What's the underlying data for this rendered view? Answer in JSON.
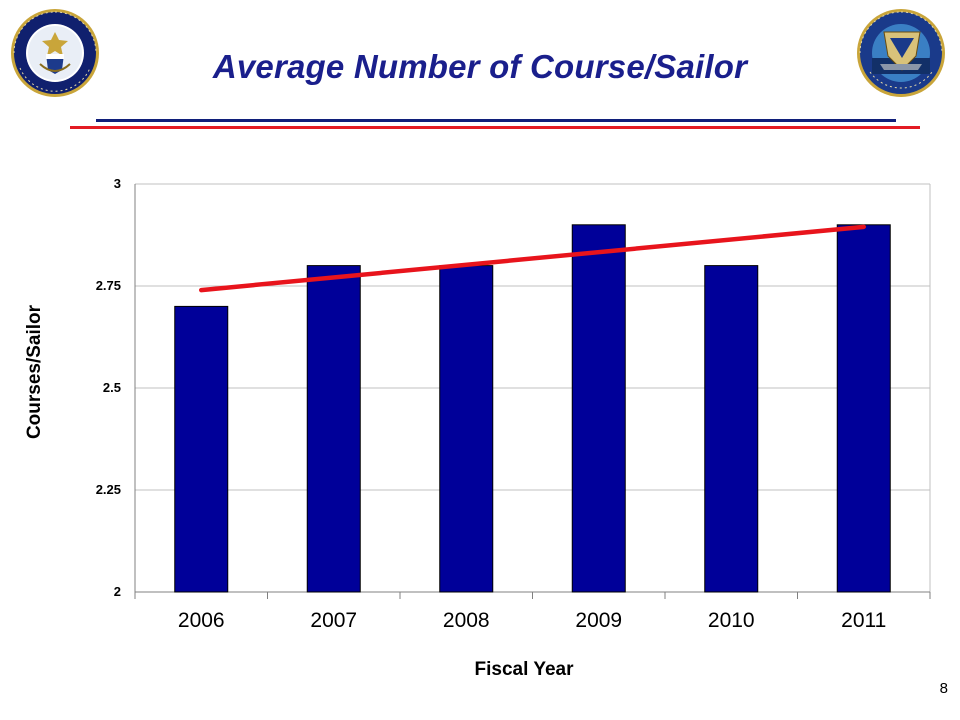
{
  "slide": {
    "title": "Average Number of Course/Sailor",
    "page_number": "8",
    "colors": {
      "title": "#1a1f8c",
      "rule_top": "#101f7a",
      "rule_bottom": "#e31b23"
    }
  },
  "logos": {
    "left": {
      "icon": "us-navy-chief-of-naval-operations-seal",
      "text": "UNITED STATES NAVY · CHIEF OF NAVAL OPERATIONS"
    },
    "right": {
      "icon": "naval-education-and-training-command-seal",
      "text": "NAVAL EDUCATION AND TRAINING COMMAND · EXCEL FOR READINESS"
    }
  },
  "chart_data": {
    "type": "bar",
    "title": "",
    "xlabel": "Fiscal Year",
    "ylabel": "Courses/Sailor",
    "categories": [
      "2006",
      "2007",
      "2008",
      "2009",
      "2010",
      "2011"
    ],
    "series": [
      {
        "values": [
          2.7,
          2.8,
          2.8,
          2.9,
          2.8,
          2.9
        ],
        "color": "#000099"
      }
    ],
    "trendline": {
      "type": "linear",
      "start": 2.74,
      "end": 2.895,
      "color": "#e8141c"
    },
    "ylim": [
      2,
      3
    ],
    "yticks": [
      2,
      2.25,
      2.5,
      2.75,
      3
    ],
    "ytick_labels": [
      "2",
      "2.25",
      "2.5",
      "2.75",
      "3"
    ],
    "grid": true,
    "legend": "none"
  }
}
